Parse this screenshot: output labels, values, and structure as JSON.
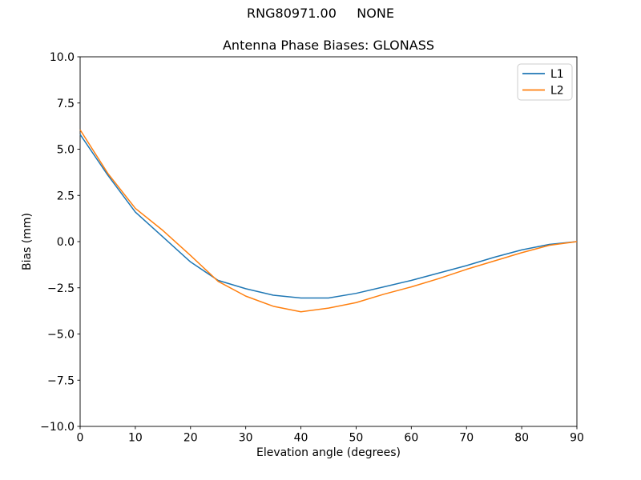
{
  "figure": {
    "suptitle": "RNG80971.00     NONE",
    "background": "#ffffff"
  },
  "chart_data": {
    "type": "line",
    "title": "Antenna Phase Biases: GLONASS",
    "xlabel": "Elevation angle (degrees)",
    "ylabel": "Bias (mm)",
    "xlim": [
      0,
      90
    ],
    "ylim": [
      -10,
      10
    ],
    "grid": false,
    "xticks": [
      0,
      10,
      20,
      30,
      40,
      50,
      60,
      70,
      80,
      90
    ],
    "xtick_labels": [
      "0",
      "10",
      "20",
      "30",
      "40",
      "50",
      "60",
      "70",
      "80",
      "90"
    ],
    "yticks": [
      -10,
      -7.5,
      -5,
      -2.5,
      0,
      2.5,
      5,
      7.5,
      10
    ],
    "ytick_labels": [
      "−10.0",
      "−7.5",
      "−5.0",
      "−2.5",
      "0.0",
      "2.5",
      "5.0",
      "7.5",
      "10.0"
    ],
    "legend": {
      "position": "upper right",
      "border_color": "#cccccc",
      "entries": [
        "L1",
        "L2"
      ]
    },
    "axes_color": "#000000",
    "x": [
      0,
      5,
      10,
      15,
      20,
      25,
      30,
      35,
      40,
      45,
      50,
      55,
      60,
      65,
      70,
      75,
      80,
      85,
      90
    ],
    "series": [
      {
        "name": "L1",
        "color": "#1f77b4",
        "values": [
          5.8,
          3.6,
          1.6,
          0.25,
          -1.1,
          -2.1,
          -2.55,
          -2.9,
          -3.05,
          -3.05,
          -2.8,
          -2.45,
          -2.1,
          -1.7,
          -1.3,
          -0.85,
          -0.45,
          -0.15,
          0.0
        ]
      },
      {
        "name": "L2",
        "color": "#ff7f0e",
        "values": [
          6.05,
          3.7,
          1.8,
          0.6,
          -0.75,
          -2.15,
          -2.95,
          -3.5,
          -3.8,
          -3.6,
          -3.3,
          -2.85,
          -2.45,
          -2.0,
          -1.5,
          -1.05,
          -0.6,
          -0.2,
          0.0
        ]
      }
    ]
  }
}
